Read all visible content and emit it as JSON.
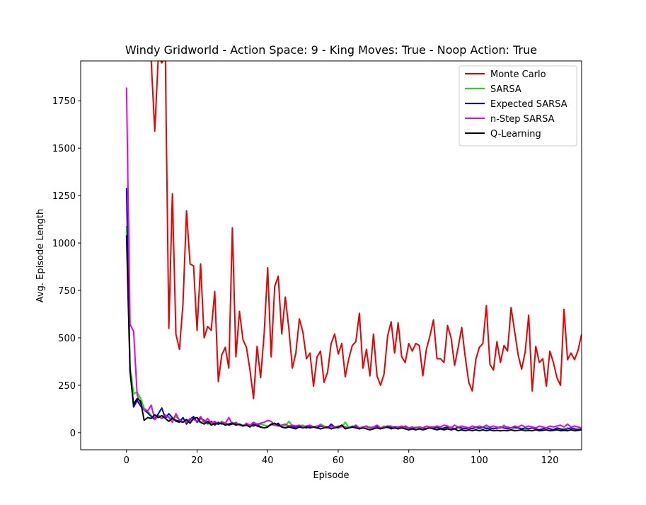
{
  "chart_data": {
    "type": "line",
    "title": "Windy Gridworld - Action Space: 9 - King Moves: True - Noop Action: True",
    "xlabel": "Episode",
    "ylabel": "Avg. Episode Length",
    "xlim": [
      -13,
      129
    ],
    "ylim": [
      -90,
      1960
    ],
    "xticks": [
      0,
      20,
      40,
      60,
      80,
      100,
      120
    ],
    "yticks": [
      0,
      250,
      500,
      750,
      1000,
      1250,
      1500,
      1750
    ],
    "grid": false,
    "legend_position": "top-right",
    "series": [
      {
        "name": "Monte Carlo",
        "color": "#ee0000",
        "x": [
          7,
          8,
          9,
          10,
          11,
          12,
          13,
          14,
          15,
          16,
          17,
          18,
          19,
          20,
          21,
          22,
          23,
          24,
          25,
          26,
          27,
          28,
          29,
          30,
          31,
          32,
          33,
          34,
          35,
          36,
          37,
          38,
          39,
          40,
          41,
          42,
          43,
          44,
          45,
          46,
          47,
          48,
          49,
          50,
          51,
          52,
          53,
          54,
          55,
          56,
          57,
          58,
          59,
          60,
          61,
          62,
          63,
          64,
          65,
          66,
          67,
          68,
          69,
          70,
          71,
          72,
          73,
          74,
          75,
          76,
          77,
          78,
          79,
          80,
          81,
          82,
          83,
          84,
          85,
          86,
          87,
          88,
          89,
          90,
          91,
          92,
          93,
          94,
          95,
          96,
          97,
          98,
          99,
          100,
          101,
          102,
          103,
          104,
          105,
          106,
          107,
          108,
          109,
          110,
          111,
          112,
          113,
          114,
          115,
          116,
          117,
          118,
          119,
          120,
          121,
          122,
          123,
          124,
          125,
          126,
          127,
          128,
          129
        ],
        "values": [
          1960,
          1590,
          1980,
          1950,
          1980,
          550,
          1260,
          520,
          440,
          680,
          1170,
          890,
          880,
          540,
          890,
          500,
          560,
          540,
          745,
          270,
          410,
          450,
          340,
          1080,
          400,
          640,
          490,
          450,
          330,
          180,
          455,
          290,
          520,
          870,
          400,
          770,
          825,
          520,
          715,
          550,
          340,
          420,
          600,
          530,
          390,
          420,
          245,
          400,
          430,
          265,
          320,
          470,
          520,
          415,
          470,
          295,
          390,
          460,
          480,
          630,
          340,
          440,
          300,
          520,
          300,
          250,
          310,
          510,
          585,
          420,
          580,
          400,
          370,
          470,
          430,
          470,
          460,
          300,
          440,
          510,
          595,
          390,
          390,
          370,
          565,
          500,
          355,
          450,
          555,
          400,
          265,
          220,
          385,
          450,
          470,
          670,
          360,
          330,
          480,
          370,
          460,
          430,
          660,
          535,
          410,
          335,
          425,
          620,
          220,
          455,
          370,
          390,
          245,
          430,
          370,
          290,
          250,
          650,
          385,
          420,
          385,
          435,
          520
        ]
      },
      {
        "name": "SARSA",
        "color": "#00ee00",
        "x": [
          0,
          1,
          2,
          3,
          4,
          5,
          6,
          7,
          8,
          9,
          10,
          11,
          12,
          13,
          14,
          15,
          16,
          17,
          18,
          19,
          20,
          21,
          22,
          23,
          24,
          25,
          26,
          27,
          28,
          29,
          30,
          31,
          32,
          33,
          34,
          35,
          36,
          37,
          38,
          39,
          40,
          41,
          42,
          43,
          44,
          45,
          46,
          47,
          48,
          49,
          50,
          51,
          52,
          53,
          54,
          55,
          56,
          57,
          58,
          59,
          60,
          61,
          62,
          63,
          64,
          65,
          66,
          67,
          68,
          69,
          70,
          71,
          72,
          73,
          74,
          75,
          76,
          77,
          78,
          79,
          80,
          81,
          82,
          83,
          84,
          85,
          86,
          87,
          88,
          89,
          90,
          91,
          92,
          93,
          94,
          95,
          96,
          97,
          98,
          99,
          100,
          101,
          102,
          103,
          104,
          105,
          106,
          107,
          108,
          109,
          110,
          111,
          112,
          113,
          114,
          115,
          116,
          117,
          118,
          119,
          120,
          121,
          122,
          123,
          124,
          125,
          126,
          127,
          128,
          129
        ],
        "values": [
          1090,
          350,
          205,
          215,
          180,
          130,
          115,
          90,
          80,
          95,
          75,
          95,
          85,
          70,
          85,
          65,
          75,
          60,
          65,
          70,
          60,
          55,
          60,
          45,
          55,
          50,
          45,
          60,
          50,
          45,
          55,
          40,
          45,
          40,
          45,
          40,
          35,
          40,
          45,
          40,
          35,
          40,
          45,
          35,
          40,
          35,
          60,
          35,
          30,
          35,
          40,
          30,
          35,
          30,
          30,
          45,
          35,
          30,
          25,
          30,
          35,
          30,
          55,
          30,
          35,
          30,
          25,
          30,
          25,
          30,
          25,
          30,
          25,
          35,
          25,
          30,
          25,
          25,
          30,
          25,
          20,
          25,
          30,
          25,
          20,
          25,
          30,
          25,
          20,
          25,
          20,
          25,
          30,
          20,
          25,
          20,
          25,
          20,
          25,
          25,
          20,
          25,
          30,
          20,
          25,
          20,
          25,
          40,
          20,
          25,
          20,
          25,
          20,
          15,
          20,
          25,
          20,
          15,
          20,
          25,
          20,
          15,
          20,
          15,
          20,
          25,
          20,
          15,
          20,
          15
        ]
      },
      {
        "name": "Expected SARSA",
        "color": "#0000ee",
        "x": [
          0,
          1,
          2,
          3,
          4,
          5,
          6,
          7,
          8,
          9,
          10,
          11,
          12,
          13,
          14,
          15,
          16,
          17,
          18,
          19,
          20,
          21,
          22,
          23,
          24,
          25,
          26,
          27,
          28,
          29,
          30,
          31,
          32,
          33,
          34,
          35,
          36,
          37,
          38,
          39,
          40,
          41,
          42,
          43,
          44,
          45,
          46,
          47,
          48,
          49,
          50,
          51,
          52,
          53,
          54,
          55,
          56,
          57,
          58,
          59,
          60,
          61,
          62,
          63,
          64,
          65,
          66,
          67,
          68,
          69,
          70,
          71,
          72,
          73,
          74,
          75,
          76,
          77,
          78,
          79,
          80,
          81,
          82,
          83,
          84,
          85,
          86,
          87,
          88,
          89,
          90,
          91,
          92,
          93,
          94,
          95,
          96,
          97,
          98,
          99,
          100,
          101,
          102,
          103,
          104,
          105,
          106,
          107,
          108,
          109,
          110,
          111,
          112,
          113,
          114,
          115,
          116,
          117,
          118,
          119,
          120,
          121,
          122,
          123,
          124,
          125,
          126,
          127,
          128,
          129
        ],
        "values": [
          1290,
          330,
          135,
          170,
          140,
          120,
          105,
          85,
          70,
          100,
          130,
          75,
          100,
          80,
          60,
          55,
          80,
          45,
          70,
          85,
          55,
          75,
          65,
          50,
          60,
          40,
          55,
          45,
          50,
          40,
          45,
          50,
          40,
          35,
          45,
          40,
          35,
          45,
          30,
          25,
          30,
          45,
          40,
          50,
          30,
          25,
          35,
          30,
          30,
          35,
          30,
          25,
          35,
          30,
          25,
          35,
          30,
          25,
          45,
          30,
          25,
          35,
          30,
          25,
          30,
          35,
          25,
          30,
          35,
          25,
          30,
          35,
          25,
          30,
          35,
          25,
          30,
          30,
          25,
          35,
          25,
          20,
          25,
          30,
          25,
          20,
          30,
          25,
          30,
          20,
          25,
          30,
          25,
          20,
          30,
          25,
          20,
          25,
          20,
          30,
          25,
          30,
          20,
          25,
          20,
          25,
          30,
          25,
          20,
          25,
          30,
          25,
          20,
          25,
          20,
          25,
          20,
          15,
          20,
          25,
          20,
          15,
          25,
          20,
          15,
          20,
          25,
          20,
          15,
          20
        ]
      },
      {
        "name": "n-Step SARSA",
        "color": "#ee00ee",
        "x": [
          0,
          1,
          2,
          3,
          4,
          5,
          6,
          7,
          8,
          9,
          10,
          11,
          12,
          13,
          14,
          15,
          16,
          17,
          18,
          19,
          20,
          21,
          22,
          23,
          24,
          25,
          26,
          27,
          28,
          29,
          30,
          31,
          32,
          33,
          34,
          35,
          36,
          37,
          38,
          39,
          40,
          41,
          42,
          43,
          44,
          45,
          46,
          47,
          48,
          49,
          50,
          51,
          52,
          53,
          54,
          55,
          56,
          57,
          58,
          59,
          60,
          61,
          62,
          63,
          64,
          65,
          66,
          67,
          68,
          69,
          70,
          71,
          72,
          73,
          74,
          75,
          76,
          77,
          78,
          79,
          80,
          81,
          82,
          83,
          84,
          85,
          86,
          87,
          88,
          89,
          90,
          91,
          92,
          93,
          94,
          95,
          96,
          97,
          98,
          99,
          100,
          101,
          102,
          103,
          104,
          105,
          106,
          107,
          108,
          109,
          110,
          111,
          112,
          113,
          114,
          115,
          116,
          117,
          118,
          119,
          120,
          121,
          122,
          123,
          124,
          125,
          126,
          127,
          128,
          129
        ],
        "values": [
          1820,
          570,
          535,
          200,
          150,
          120,
          115,
          145,
          70,
          85,
          75,
          90,
          80,
          55,
          100,
          65,
          60,
          55,
          75,
          70,
          60,
          85,
          55,
          75,
          50,
          60,
          45,
          55,
          50,
          80,
          45,
          55,
          40,
          35,
          50,
          40,
          55,
          45,
          50,
          55,
          65,
          60,
          40,
          35,
          40,
          45,
          35,
          40,
          35,
          40,
          30,
          35,
          40,
          30,
          35,
          40,
          30,
          25,
          35,
          30,
          25,
          35,
          30,
          25,
          30,
          40,
          25,
          30,
          35,
          25,
          30,
          40,
          25,
          30,
          35,
          35,
          25,
          30,
          35,
          30,
          25,
          30,
          25,
          30,
          25,
          35,
          30,
          30,
          35,
          30,
          40,
          35,
          25,
          40,
          30,
          35,
          30,
          25,
          35,
          30,
          35,
          30,
          40,
          30,
          35,
          30,
          25,
          35,
          30,
          25,
          35,
          30,
          40,
          30,
          35,
          30,
          25,
          35,
          30,
          25,
          35,
          30,
          35,
          40,
          30,
          45,
          30,
          35,
          30,
          25
        ]
      },
      {
        "name": "Q-Learning",
        "color": "#000000",
        "x": [
          0,
          1,
          2,
          3,
          4,
          5,
          6,
          7,
          8,
          9,
          10,
          11,
          12,
          13,
          14,
          15,
          16,
          17,
          18,
          19,
          20,
          21,
          22,
          23,
          24,
          25,
          26,
          27,
          28,
          29,
          30,
          31,
          32,
          33,
          34,
          35,
          36,
          37,
          38,
          39,
          40,
          41,
          42,
          43,
          44,
          45,
          46,
          47,
          48,
          49,
          50,
          51,
          52,
          53,
          54,
          55,
          56,
          57,
          58,
          59,
          60,
          61,
          62,
          63,
          64,
          65,
          66,
          67,
          68,
          69,
          70,
          71,
          72,
          73,
          74,
          75,
          76,
          77,
          78,
          79,
          80,
          81,
          82,
          83,
          84,
          85,
          86,
          87,
          88,
          89,
          90,
          91,
          92,
          93,
          94,
          95,
          96,
          97,
          98,
          99,
          100,
          101,
          102,
          103,
          104,
          105,
          106,
          107,
          108,
          109,
          110,
          111,
          112,
          113,
          114,
          115,
          116,
          117,
          118,
          119,
          120,
          121,
          122,
          123,
          124,
          125,
          126,
          127,
          128,
          129
        ],
        "values": [
          1040,
          320,
          150,
          180,
          165,
          65,
          80,
          75,
          95,
          80,
          90,
          75,
          60,
          75,
          65,
          60,
          55,
          70,
          50,
          75,
          80,
          55,
          45,
          60,
          40,
          50,
          45,
          50,
          40,
          45,
          50,
          40,
          45,
          35,
          40,
          30,
          45,
          35,
          30,
          25,
          30,
          45,
          50,
          40,
          30,
          25,
          30,
          25,
          20,
          30,
          25,
          30,
          25,
          30,
          25,
          20,
          25,
          30,
          20,
          25,
          30,
          40,
          20,
          25,
          30,
          25,
          20,
          25,
          20,
          15,
          20,
          25,
          20,
          25,
          30,
          20,
          25,
          20,
          25,
          20,
          15,
          20,
          15,
          20,
          15,
          20,
          25,
          20,
          15,
          20,
          15,
          20,
          15,
          20,
          10,
          15,
          10,
          15,
          10,
          15,
          10,
          15,
          10,
          15,
          10,
          12,
          10,
          12,
          10,
          15,
          10,
          12,
          15,
          10,
          12,
          10,
          15,
          10,
          12,
          15,
          10,
          12,
          15,
          10,
          12,
          10,
          15,
          10,
          12,
          15
        ]
      }
    ]
  }
}
